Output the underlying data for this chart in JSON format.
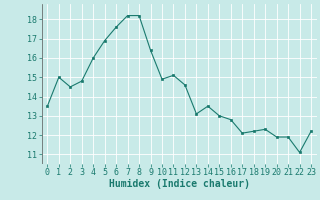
{
  "x": [
    0,
    1,
    2,
    3,
    4,
    5,
    6,
    7,
    8,
    9,
    10,
    11,
    12,
    13,
    14,
    15,
    16,
    17,
    18,
    19,
    20,
    21,
    22,
    23
  ],
  "y": [
    13.5,
    15.0,
    14.5,
    14.8,
    16.0,
    16.9,
    17.6,
    18.2,
    18.2,
    16.4,
    14.9,
    15.1,
    14.6,
    13.1,
    13.5,
    13.0,
    12.8,
    12.1,
    12.2,
    12.3,
    11.9,
    11.9,
    11.1,
    12.2
  ],
  "xlabel": "Humidex (Indice chaleur)",
  "ylim": [
    10.5,
    18.8
  ],
  "xlim": [
    -0.5,
    23.5
  ],
  "yticks": [
    11,
    12,
    13,
    14,
    15,
    16,
    17,
    18
  ],
  "xticks": [
    0,
    1,
    2,
    3,
    4,
    5,
    6,
    7,
    8,
    9,
    10,
    11,
    12,
    13,
    14,
    15,
    16,
    17,
    18,
    19,
    20,
    21,
    22,
    23
  ],
  "line_color": "#1a7a6e",
  "marker_color": "#1a7a6e",
  "bg_color": "#c8eae8",
  "grid_color": "#ffffff",
  "tick_color": "#1a7a6e",
  "xlabel_fontsize": 7,
  "tick_fontsize": 6,
  "linewidth": 0.8,
  "markersize": 2.0
}
